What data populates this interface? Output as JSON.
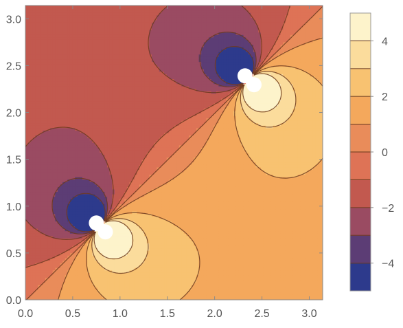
{
  "chart_data": {
    "type": "heatmap",
    "subtype": "contour",
    "title": "",
    "xlabel": "",
    "ylabel": "",
    "xlim": [
      0,
      3.14159
    ],
    "ylim": [
      0,
      3.14159
    ],
    "x_ticks": [
      "0.0",
      "0.5",
      "1.0",
      "1.5",
      "2.0",
      "2.5",
      "3.0"
    ],
    "y_ticks": [
      "0.0",
      "0.5",
      "1.0",
      "1.5",
      "2.0",
      "2.5",
      "3.0"
    ],
    "x_tick_values": [
      0,
      0.5,
      1.0,
      1.5,
      2.0,
      2.5,
      3.0
    ],
    "y_tick_values": [
      0,
      0.5,
      1.0,
      1.5,
      2.0,
      2.5,
      3.0
    ],
    "singularities": [
      {
        "x": 0.785,
        "y": 0.785
      },
      {
        "x": 2.356,
        "y": 2.356
      }
    ],
    "contour_levels": [
      -5,
      -4,
      -3,
      -2,
      -1,
      0,
      1,
      2,
      3,
      4,
      5
    ],
    "colorbar": {
      "range": [
        -5,
        5
      ],
      "tick_values": [
        4,
        2,
        0,
        -2,
        -4
      ],
      "tick_labels": [
        "4",
        "2",
        "0",
        "−2",
        "−4"
      ],
      "band_colors": [
        "#2d3a8c",
        "#5c3d75",
        "#9a4b62",
        "#c2594f",
        "#de7356",
        "#e98c5a",
        "#f4a85c",
        "#f8c271",
        "#fbdc9c",
        "#fdf3cb"
      ]
    }
  }
}
